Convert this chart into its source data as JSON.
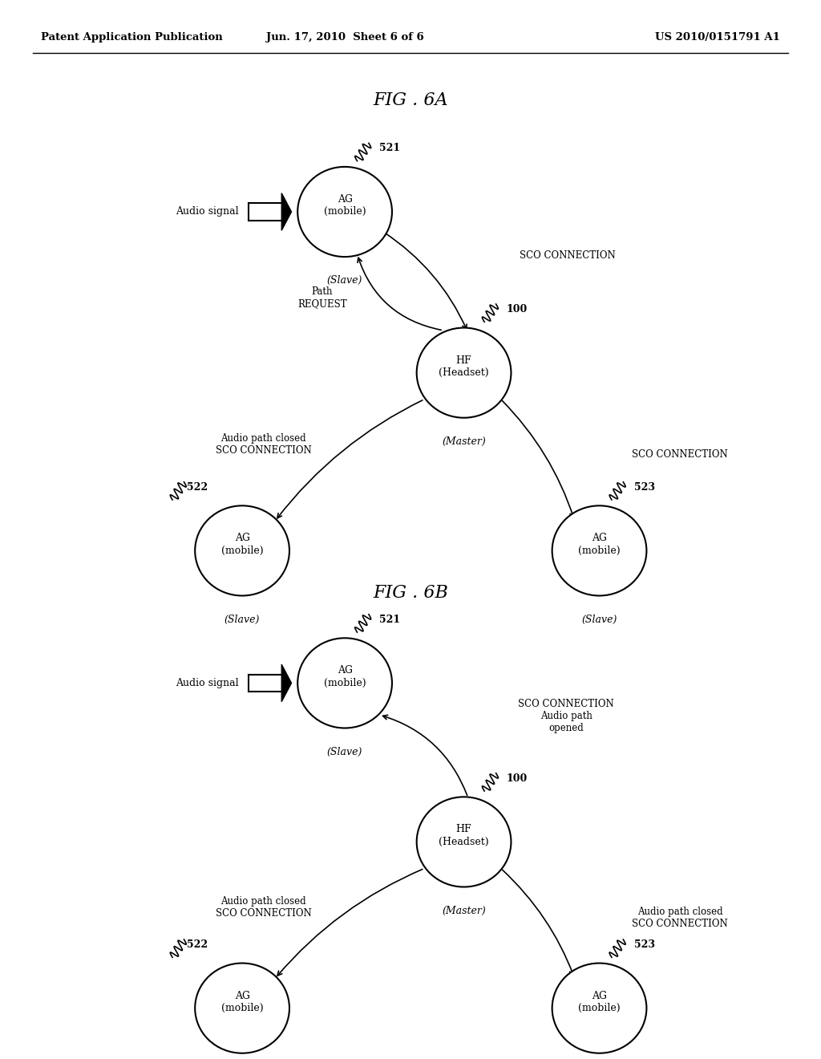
{
  "bg_color": "#ffffff",
  "header_left": "Patent Application Publication",
  "header_center": "Jun. 17, 2010  Sheet 6 of 6",
  "header_right": "US 2010/0151791 A1",
  "fig6a_title": "FIG . 6A",
  "fig6b_title": "FIG . 6B"
}
